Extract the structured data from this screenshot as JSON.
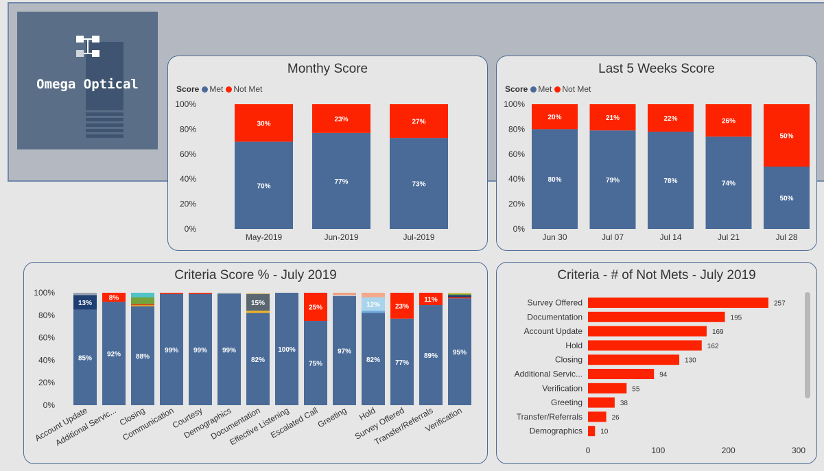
{
  "logo": {
    "text": "Omega Optical"
  },
  "colors": {
    "met": "#4a6b98",
    "not_met": "#fe2300"
  },
  "chart_data": [
    {
      "id": "monthly",
      "type": "bar",
      "stacked": true,
      "title": "Monthy Score",
      "legend_title": "Score",
      "legend": [
        "Met",
        "Not Met"
      ],
      "categories": [
        "May-2019",
        "Jun-2019",
        "Jul-2019"
      ],
      "series": [
        {
          "name": "Met",
          "values": [
            70,
            77,
            73
          ],
          "labels": [
            "70%",
            "77%",
            "73%"
          ]
        },
        {
          "name": "Not Met",
          "values": [
            30,
            23,
            27
          ],
          "labels": [
            "30%",
            "23%",
            "27%"
          ]
        }
      ],
      "ylim": [
        0,
        100
      ],
      "yticks": [
        "0%",
        "20%",
        "40%",
        "60%",
        "80%",
        "100%"
      ]
    },
    {
      "id": "weekly",
      "type": "bar",
      "stacked": true,
      "title": "Last 5 Weeks Score",
      "legend_title": "Score",
      "legend": [
        "Met",
        "Not Met"
      ],
      "categories": [
        "Jun 30",
        "Jul 07",
        "Jul 14",
        "Jul 21",
        "Jul 28"
      ],
      "series": [
        {
          "name": "Met",
          "values": [
            80,
            79,
            78,
            74,
            50
          ],
          "labels": [
            "80%",
            "79%",
            "78%",
            "74%",
            "50%"
          ]
        },
        {
          "name": "Not Met",
          "values": [
            20,
            21,
            22,
            26,
            50
          ],
          "labels": [
            "20%",
            "21%",
            "22%",
            "26%",
            "50%"
          ]
        }
      ],
      "ylim": [
        0,
        100
      ],
      "yticks": [
        "0%",
        "20%",
        "40%",
        "60%",
        "80%",
        "100%"
      ]
    },
    {
      "id": "criteria_pct",
      "type": "bar",
      "stacked": true,
      "title": "Criteria Score % - July 2019",
      "categories": [
        "Account Update",
        "Additional Servic...",
        "Closing",
        "Communication",
        "Courtesy",
        "Demographics",
        "Documentation",
        "Effective Listening",
        "Escalated Call",
        "Greeting",
        "Hold",
        "Survey Offered",
        "Transfer/Referrals",
        "Verification"
      ],
      "stacks": [
        [
          {
            "v": 85,
            "c": "#4a6b98",
            "l": "85%"
          },
          {
            "v": 13,
            "c": "#1f3f73",
            "l": "13%"
          },
          {
            "v": 2,
            "c": "#9aa3ae",
            "l": ""
          }
        ],
        [
          {
            "v": 92,
            "c": "#4a6b98",
            "l": "92%"
          },
          {
            "v": 8,
            "c": "#fe2300",
            "l": "8%"
          }
        ],
        [
          {
            "v": 88,
            "c": "#4a6b98",
            "l": "88%"
          },
          {
            "v": 1,
            "c": "#e0a020",
            "l": ""
          },
          {
            "v": 1,
            "c": "#d84315",
            "l": ""
          },
          {
            "v": 6,
            "c": "#74a33e",
            "l": ""
          },
          {
            "v": 4,
            "c": "#4fc3c8",
            "l": ""
          }
        ],
        [
          {
            "v": 99,
            "c": "#4a6b98",
            "l": "99%"
          },
          {
            "v": 1,
            "c": "#fe2300",
            "l": ""
          }
        ],
        [
          {
            "v": 99,
            "c": "#4a6b98",
            "l": "99%"
          },
          {
            "v": 1,
            "c": "#fe2300",
            "l": ""
          }
        ],
        [
          {
            "v": 99,
            "c": "#4a6b98",
            "l": "99%"
          },
          {
            "v": 1,
            "c": "#9aa3ae",
            "l": ""
          }
        ],
        [
          {
            "v": 82,
            "c": "#4a6b98",
            "l": "82%"
          },
          {
            "v": 2,
            "c": "#f0b429",
            "l": ""
          },
          {
            "v": 15,
            "c": "#5b6770",
            "l": "15%"
          },
          {
            "v": 1,
            "c": "#f0d38a",
            "l": ""
          }
        ],
        [
          {
            "v": 100,
            "c": "#4a6b98",
            "l": "100%"
          }
        ],
        [
          {
            "v": 75,
            "c": "#4a6b98",
            "l": "75%"
          },
          {
            "v": 25,
            "c": "#fe2300",
            "l": "25%"
          }
        ],
        [
          {
            "v": 97,
            "c": "#4a6b98",
            "l": "97%"
          },
          {
            "v": 1,
            "c": "#c6ccd4",
            "l": ""
          },
          {
            "v": 2,
            "c": "#f0a080",
            "l": ""
          }
        ],
        [
          {
            "v": 82,
            "c": "#4a6b98",
            "l": "82%"
          },
          {
            "v": 2,
            "c": "#6fa8dc",
            "l": ""
          },
          {
            "v": 12,
            "c": "#a9d4ec",
            "l": "12%"
          },
          {
            "v": 4,
            "c": "#f4a98c",
            "l": ""
          }
        ],
        [
          {
            "v": 77,
            "c": "#4a6b98",
            "l": "77%"
          },
          {
            "v": 23,
            "c": "#fe2300",
            "l": "23%"
          }
        ],
        [
          {
            "v": 89,
            "c": "#4a6b98",
            "l": "89%"
          },
          {
            "v": 11,
            "c": "#fe2300",
            "l": "11%"
          }
        ],
        [
          {
            "v": 95,
            "c": "#4a6b98",
            "l": "95%"
          },
          {
            "v": 1,
            "c": "#fe2300",
            "l": ""
          },
          {
            "v": 2,
            "c": "#1f3f73",
            "l": ""
          },
          {
            "v": 1,
            "c": "#74a33e",
            "l": ""
          },
          {
            "v": 1,
            "c": "#d9c24a",
            "l": ""
          }
        ]
      ],
      "ylim": [
        0,
        100
      ],
      "yticks": [
        "0%",
        "20%",
        "40%",
        "60%",
        "80%",
        "100%"
      ]
    },
    {
      "id": "not_mets",
      "type": "bar",
      "orientation": "horizontal",
      "title": "Criteria - # of Not Mets - July 2019",
      "categories": [
        "Survey Offered",
        "Documentation",
        "Account Update",
        "Hold",
        "Closing",
        "Additional Servic...",
        "Verification",
        "Greeting",
        "Transfer/Referrals",
        "Demographics"
      ],
      "values": [
        257,
        195,
        169,
        162,
        130,
        94,
        55,
        38,
        26,
        10
      ],
      "xlim": [
        0,
        300
      ],
      "xticks": [
        "0",
        "100",
        "200",
        "300"
      ]
    }
  ]
}
